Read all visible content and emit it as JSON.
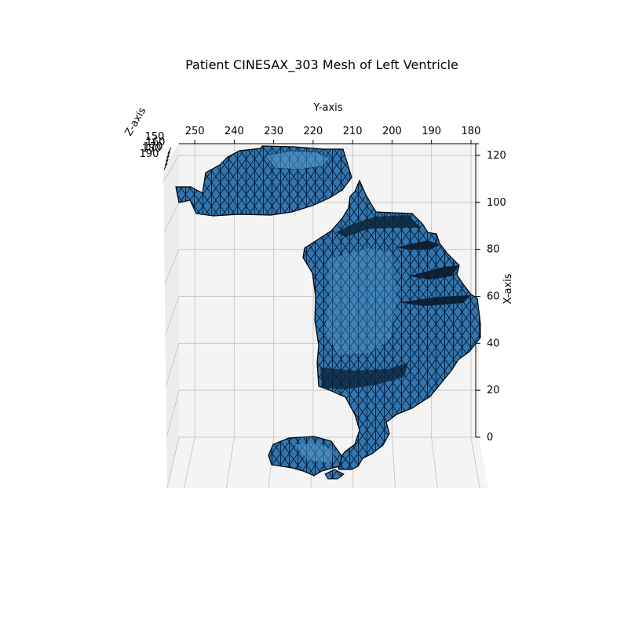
{
  "chart_data": {
    "type": "3d-surface",
    "title": "Patient CINESAX_303 Mesh of Left Ventricle",
    "xlabel": "X-axis",
    "ylabel": "Y-axis",
    "zlabel": "Z-axis",
    "x_ticks": [
      0,
      20,
      40,
      60,
      80,
      100,
      120
    ],
    "y_ticks": [
      250,
      240,
      230,
      220,
      210,
      200,
      190,
      180
    ],
    "z_ticks": [
      150,
      160,
      170,
      180,
      190
    ],
    "xlim": [
      0,
      125
    ],
    "ylim": [
      254,
      178
    ],
    "mesh_face_color": "#3b87c4",
    "mesh_edge_color": "#000000",
    "pane_color": "#f2f2f2",
    "grid": true
  }
}
